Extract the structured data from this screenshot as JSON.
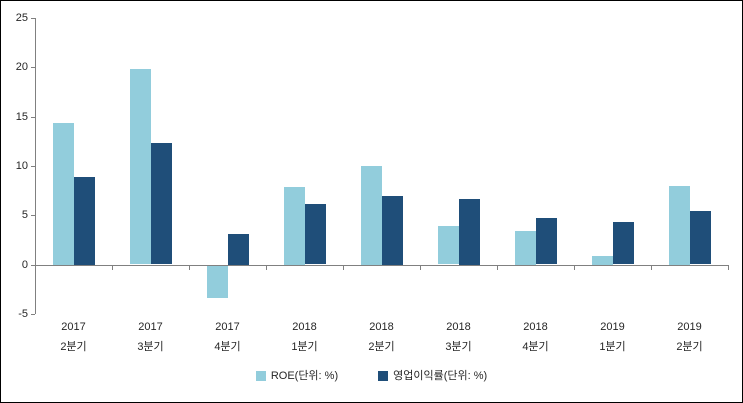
{
  "chart_data": {
    "type": "bar",
    "title": "",
    "xlabel": "",
    "ylabel": "",
    "categories": [
      {
        "line1": "2017",
        "line2": "2분기"
      },
      {
        "line1": "2017",
        "line2": "3분기"
      },
      {
        "line1": "2017",
        "line2": "4분기"
      },
      {
        "line1": "2018",
        "line2": "1분기"
      },
      {
        "line1": "2018",
        "line2": "2분기"
      },
      {
        "line1": "2018",
        "line2": "3분기"
      },
      {
        "line1": "2018",
        "line2": "4분기"
      },
      {
        "line1": "2019",
        "line2": "1분기"
      },
      {
        "line1": "2019",
        "line2": "2분기"
      }
    ],
    "series": [
      {
        "name": "ROE(단위: %)",
        "color": "#92CDDC",
        "values": [
          14.4,
          19.8,
          -3.2,
          7.9,
          10.0,
          3.9,
          3.4,
          0.9,
          8.0
        ]
      },
      {
        "name": "영업이익률(단위: %)",
        "color": "#1F4E79",
        "values": [
          8.9,
          12.3,
          3.1,
          6.1,
          7.0,
          6.7,
          4.7,
          4.3,
          5.4
        ]
      }
    ],
    "ylim": [
      -5,
      25
    ],
    "yticks": [
      25,
      20,
      15,
      10,
      5,
      0,
      -5
    ],
    "grid": false,
    "legend_position": "bottom",
    "axis_color": "#808080",
    "tick_label_color": "#262626",
    "background": "#FFFFFF",
    "border_color": "#000000"
  }
}
